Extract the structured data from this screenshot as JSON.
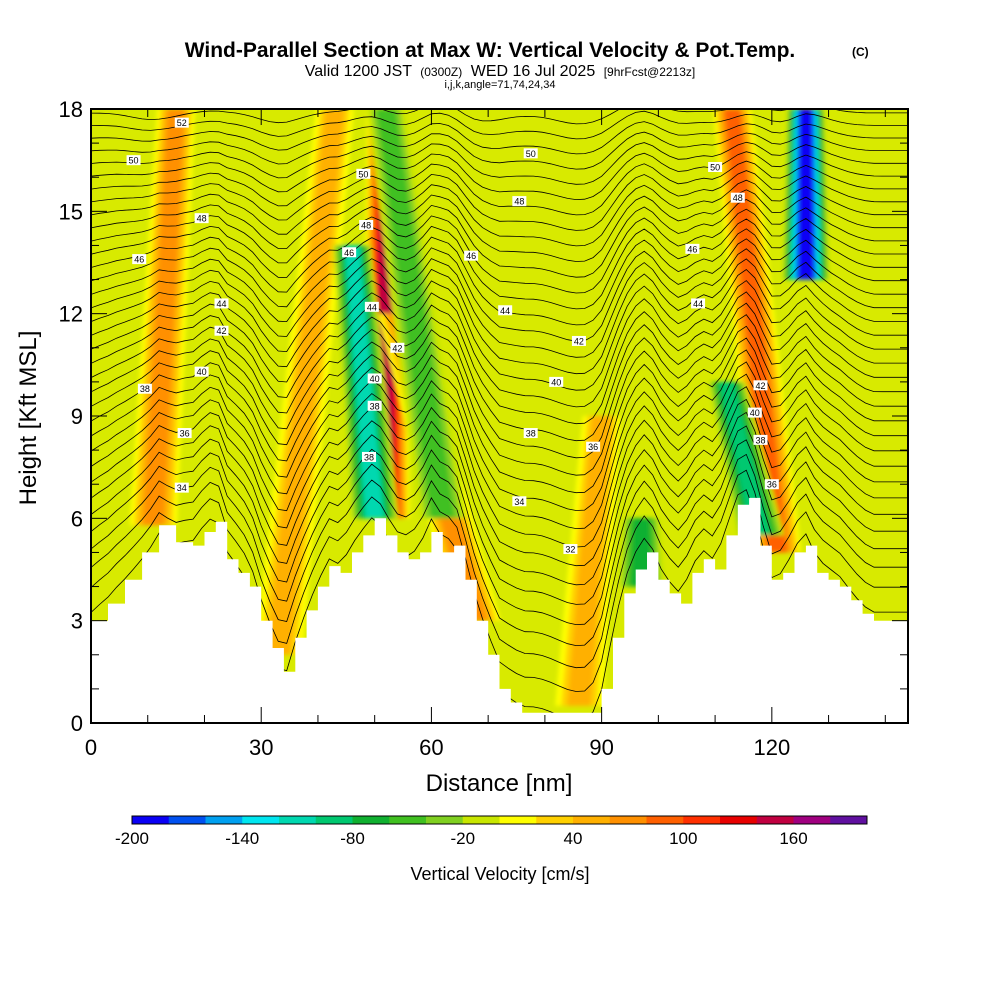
{
  "chart_data": {
    "type": "heatmap",
    "title": "Wind-Parallel Section at Max W: Vertical Velocity & Pot.Temp.",
    "title_mark": "(C)",
    "subtitle_parts": [
      "Valid 1200 JST",
      "(0300Z)",
      "WED 16 Jul 2025",
      "[9hrFcst@2213z]"
    ],
    "subtitle2": "i,j,k,angle=71,74,24,34",
    "xlabel": "Distance [nm]",
    "ylabel": "Height [Kft MSL]",
    "xlim": [
      0,
      144
    ],
    "ylim": [
      0,
      18
    ],
    "x_ticks": [
      0,
      30,
      60,
      90,
      120
    ],
    "x_tick_labels": [
      "0",
      "30",
      "60",
      "90",
      "120"
    ],
    "y_ticks": [
      0,
      3,
      6,
      9,
      12,
      15,
      18
    ],
    "y_tick_labels": [
      "0",
      "3",
      "6",
      "9",
      "12",
      "15",
      "18"
    ],
    "colorbar": {
      "title": "Vertical Velocity [cm/s]",
      "min": -200,
      "max": 200,
      "step": 20,
      "tick_values": [
        -200,
        -140,
        -80,
        -20,
        40,
        100,
        160
      ],
      "tick_labels": [
        "-200",
        "-140",
        "-80",
        "-20",
        "40",
        "100",
        "160"
      ],
      "colors": [
        "#0a00f5",
        "#0050f0",
        "#00a0f0",
        "#00e6f0",
        "#00d8b0",
        "#00c870",
        "#10b030",
        "#40c020",
        "#80d020",
        "#c8e600",
        "#ffff00",
        "#ffd000",
        "#ffb000",
        "#ff9000",
        "#ff6000",
        "#ff3000",
        "#e80000",
        "#c00040",
        "#a00080",
        "#6010a0"
      ]
    },
    "terrain": {
      "x": [
        0,
        3,
        6,
        9,
        12,
        15,
        18,
        20,
        22,
        24,
        26,
        28,
        30,
        32,
        34,
        36,
        38,
        40,
        42,
        44,
        46,
        48,
        50,
        52,
        54,
        56,
        58,
        60,
        62,
        64,
        66,
        68,
        70,
        72,
        74,
        76,
        78,
        80,
        82,
        84,
        86,
        88,
        90,
        92,
        94,
        96,
        98,
        100,
        102,
        104,
        106,
        108,
        110,
        112,
        114,
        116,
        118,
        120,
        122,
        124,
        126,
        128,
        130,
        132,
        134,
        136,
        138,
        140,
        144
      ],
      "height_kft": [
        3.0,
        3.5,
        4.2,
        5.0,
        5.8,
        5.3,
        5.2,
        5.6,
        5.9,
        4.8,
        4.4,
        4.0,
        3.0,
        2.2,
        1.5,
        2.5,
        3.3,
        4.0,
        4.6,
        4.4,
        5.0,
        5.5,
        6.0,
        5.5,
        5.0,
        4.8,
        5.0,
        5.6,
        5.0,
        5.2,
        4.2,
        3.0,
        2.0,
        1.0,
        0.6,
        0.3,
        0.3,
        0.3,
        0.3,
        0.3,
        0.3,
        0.3,
        1.0,
        2.5,
        3.8,
        4.5,
        5.0,
        4.2,
        3.8,
        3.5,
        4.4,
        4.8,
        4.5,
        5.5,
        6.4,
        6.6,
        5.2,
        4.2,
        4.4,
        5.0,
        5.2,
        4.4,
        4.2,
        4.0,
        3.6,
        3.2,
        3.0,
        3.0,
        3.0
      ]
    },
    "updrafts": [
      {
        "x": 11,
        "base_kft": 5.8,
        "top_kft": 18,
        "peak_cm_s": 80,
        "tilt_nm": 4
      },
      {
        "x": 33,
        "base_kft": 2.0,
        "top_kft": 18,
        "peak_cm_s": 60,
        "tilt_nm": 10
      },
      {
        "x": 52,
        "base_kft": 6.0,
        "top_kft": 18,
        "peak_cm_s": 160,
        "tilt_nm": 0
      },
      {
        "x": 68,
        "base_kft": 3.0,
        "top_kft": 12,
        "peak_cm_s": 70,
        "tilt_nm": -14
      },
      {
        "x": 86,
        "base_kft": 0.5,
        "top_kft": 9,
        "peak_cm_s": 60,
        "tilt_nm": 4
      },
      {
        "x": 121,
        "base_kft": 5.0,
        "top_kft": 18,
        "peak_cm_s": 100,
        "tilt_nm": -8
      }
    ],
    "downdrafts": [
      {
        "x": 50,
        "base_kft": 6.0,
        "top_kft": 14,
        "peak_cm_s": -120,
        "tilt_nm": -4
      },
      {
        "x": 126,
        "base_kft": 13,
        "top_kft": 18,
        "peak_cm_s": -200,
        "tilt_nm": 0
      },
      {
        "x": 62,
        "base_kft": 6.0,
        "top_kft": 18,
        "peak_cm_s": -60,
        "tilt_nm": -10
      },
      {
        "x": 97,
        "base_kft": 4.0,
        "top_kft": 6,
        "peak_cm_s": -70,
        "tilt_nm": 0
      },
      {
        "x": 118,
        "base_kft": 5.5,
        "top_kft": 10,
        "peak_cm_s": -90,
        "tilt_nm": -6
      }
    ],
    "pot_temp_contours": {
      "levels": [
        32,
        34,
        36,
        38,
        40,
        42,
        44,
        46,
        48,
        50,
        52
      ],
      "labels": [
        {
          "text": "52",
          "x": 16,
          "y": 17.6
        },
        {
          "text": "50",
          "x": 7.5,
          "y": 16.5
        },
        {
          "text": "48",
          "x": 19.5,
          "y": 14.8
        },
        {
          "text": "46",
          "x": 8.5,
          "y": 13.6
        },
        {
          "text": "44",
          "x": 23,
          "y": 12.3
        },
        {
          "text": "42",
          "x": 23,
          "y": 11.5
        },
        {
          "text": "40",
          "x": 19.5,
          "y": 10.3
        },
        {
          "text": "38",
          "x": 9.5,
          "y": 9.8
        },
        {
          "text": "36",
          "x": 16.5,
          "y": 8.5
        },
        {
          "text": "34",
          "x": 16,
          "y": 6.9
        },
        {
          "text": "50",
          "x": 48,
          "y": 16.1
        },
        {
          "text": "48",
          "x": 48.5,
          "y": 14.6
        },
        {
          "text": "46",
          "x": 45.5,
          "y": 13.8
        },
        {
          "text": "44",
          "x": 49.5,
          "y": 12.2
        },
        {
          "text": "42",
          "x": 54,
          "y": 11.0
        },
        {
          "text": "40",
          "x": 50,
          "y": 10.1
        },
        {
          "text": "38",
          "x": 50,
          "y": 9.3
        },
        {
          "text": "38",
          "x": 49,
          "y": 7.8
        },
        {
          "text": "50",
          "x": 77.5,
          "y": 16.7
        },
        {
          "text": "48",
          "x": 75.5,
          "y": 15.3
        },
        {
          "text": "46",
          "x": 67,
          "y": 13.7
        },
        {
          "text": "44",
          "x": 73,
          "y": 12.1
        },
        {
          "text": "42",
          "x": 86,
          "y": 11.2
        },
        {
          "text": "40",
          "x": 82,
          "y": 10.0
        },
        {
          "text": "38",
          "x": 77.5,
          "y": 8.5
        },
        {
          "text": "36",
          "x": 88.5,
          "y": 8.1
        },
        {
          "text": "34",
          "x": 75.5,
          "y": 6.5
        },
        {
          "text": "32",
          "x": 84.5,
          "y": 5.1
        },
        {
          "text": "50",
          "x": 110,
          "y": 16.3
        },
        {
          "text": "48",
          "x": 114,
          "y": 15.4
        },
        {
          "text": "46",
          "x": 106,
          "y": 13.9
        },
        {
          "text": "44",
          "x": 107,
          "y": 12.3
        },
        {
          "text": "42",
          "x": 118,
          "y": 9.9
        },
        {
          "text": "40",
          "x": 117,
          "y": 9.1
        },
        {
          "text": "38",
          "x": 118,
          "y": 8.3
        },
        {
          "text": "36",
          "x": 120,
          "y": 7.0
        }
      ]
    }
  }
}
